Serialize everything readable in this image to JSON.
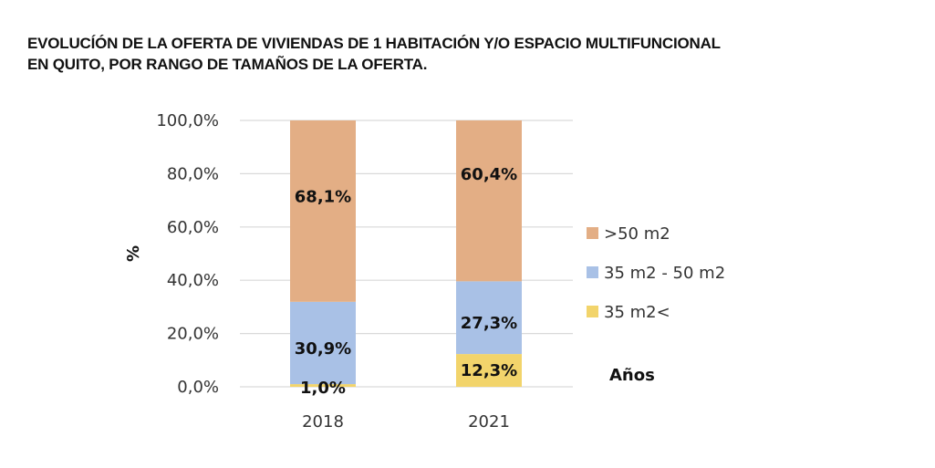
{
  "chart_data": {
    "type": "bar",
    "stacked": true,
    "title_lines": [
      "EVOLUCÍÓN DE LA OFERTA DE VIVIENDAS DE 1 HABITACIÓN Y/O ESPACIO MULTIFUNCIONAL",
      "EN QUITO, POR RANGO DE TAMAÑOS DE LA OFERTA."
    ],
    "categories": [
      "2018",
      "2021"
    ],
    "series": [
      {
        "name": "35 m2<",
        "color": "#f2d46b",
        "values": [
          1.0,
          12.3
        ],
        "labels": [
          "1,0%",
          "12,3%"
        ]
      },
      {
        "name": "35 m2 - 50 m2",
        "color": "#a9c1e6",
        "values": [
          30.9,
          27.3
        ],
        "labels": [
          "30,9%",
          "27,3%"
        ]
      },
      {
        "name": ">50 m2",
        "color": "#e3ae85",
        "values": [
          68.1,
          60.4
        ],
        "labels": [
          "68,1%",
          "60,4%"
        ]
      }
    ],
    "legend_order": [
      ">50 m2",
      "35 m2 - 50 m2",
      "35 m2<"
    ],
    "legend_position": "right",
    "xlabel": "Años",
    "ylabel": "%",
    "ylim": [
      0,
      100
    ],
    "yticks": [
      0,
      20,
      40,
      60,
      80,
      100
    ],
    "ytick_labels": [
      "0,0%",
      "20,0%",
      "40,0%",
      "60,0%",
      "80,0%",
      "100,0%"
    ],
    "grid": true
  }
}
